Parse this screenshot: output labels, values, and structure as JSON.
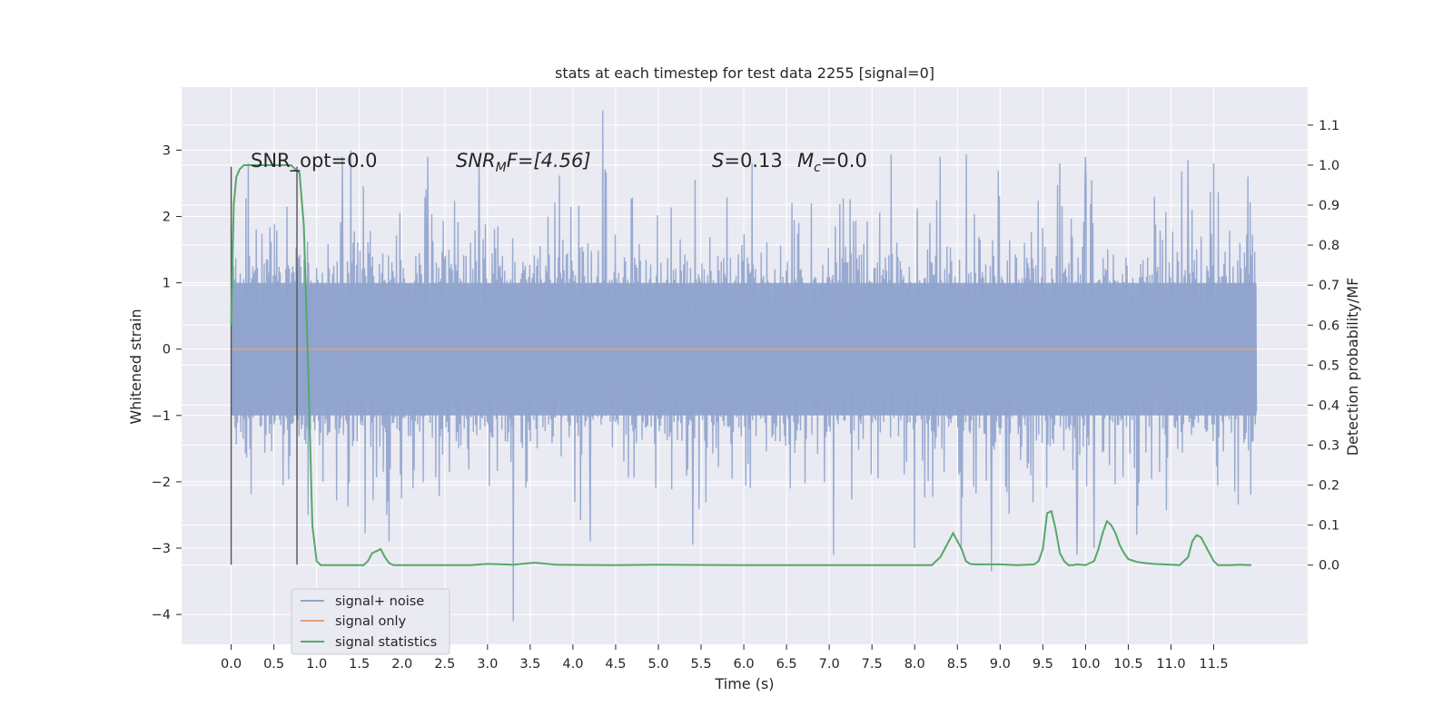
{
  "chart_data": {
    "type": "line",
    "title": "stats at each timestep for test data 2255 [signal=0]",
    "xlabel": "Time (s)",
    "ylabel": "Whitened strain",
    "y2label": "Detection probability/MF",
    "xlim": [
      -0.58,
      12.6
    ],
    "ylim": [
      -4.45,
      3.95
    ],
    "y2lim": [
      -0.198,
      1.195
    ],
    "xticks": [
      "0.0",
      "0.5",
      "1.0",
      "1.5",
      "2.0",
      "2.5",
      "3.0",
      "3.5",
      "4.0",
      "4.5",
      "5.0",
      "5.5",
      "6.0",
      "6.5",
      "7.0",
      "7.5",
      "8.0",
      "8.5",
      "9.0",
      "9.5",
      "10.0",
      "10.5",
      "11.0",
      "11.5"
    ],
    "yticks": [
      "−4",
      "−3",
      "−2",
      "−1",
      "0",
      "1",
      "2",
      "3"
    ],
    "y2ticks": [
      "0.0",
      "0.1",
      "0.2",
      "0.3",
      "0.4",
      "0.5",
      "0.6",
      "0.7",
      "0.8",
      "0.9",
      "1.0",
      "1.1"
    ],
    "annotations": {
      "snr_opt": "SNR_opt=0.0",
      "snr_mf_base": "SNR",
      "snr_mf_sub": "M",
      "snr_mf_rest": "F=[4.56]",
      "s_sym": "S",
      "s_val": "=0.13",
      "mc_base": "M",
      "mc_sub": "c",
      "mc_val": "=0.0"
    },
    "vlines": [
      0.0,
      0.77
    ],
    "vline_range": [
      -3.25,
      2.75
    ],
    "legend": {
      "placement": "lower-left",
      "entries": [
        "signal+ noise",
        "signal only",
        "signal statistics"
      ]
    },
    "colors": {
      "noise": "#8fa3cc",
      "signal_only": "#e1a07f",
      "statistics": "#55a868",
      "vline": "#555555",
      "plot_bg": "#eaeaf2",
      "grid": "#ffffff"
    },
    "series": [
      {
        "name": "signal+ noise",
        "axis": "left",
        "x_range": [
          0.0,
          12.0
        ],
        "band_bulk": [
          -1.0,
          1.0
        ],
        "envelope_typical": [
          -1.6,
          1.6
        ],
        "spikes": [
          [
            0.2,
            2.8
          ],
          [
            1.3,
            2.9
          ],
          [
            1.4,
            3.0
          ],
          [
            2.3,
            2.9
          ],
          [
            2.9,
            2.9
          ],
          [
            4.35,
            3.6
          ],
          [
            3.3,
            -4.1
          ],
          [
            6.1,
            2.8
          ],
          [
            8.3,
            2.9
          ],
          [
            9.7,
            2.8
          ],
          [
            10.0,
            2.9
          ],
          [
            11.2,
            2.85
          ],
          [
            11.5,
            2.8
          ],
          [
            11.9,
            2.6
          ],
          [
            7.05,
            -3.1
          ],
          [
            8.0,
            -3.0
          ],
          [
            8.9,
            -3.35
          ],
          [
            9.9,
            -3.1
          ],
          [
            10.1,
            -3.0
          ],
          [
            4.2,
            -2.9
          ],
          [
            5.4,
            -2.95
          ],
          [
            10.6,
            -2.8
          ],
          [
            1.85,
            -2.9
          ],
          [
            0.9,
            -2.5
          ]
        ]
      },
      {
        "name": "signal only",
        "axis": "left",
        "x": [
          0.0,
          12.0
        ],
        "y": [
          0.0,
          0.0
        ]
      },
      {
        "name": "signal statistics",
        "axis": "right",
        "x": [
          0.0,
          0.03,
          0.06,
          0.1,
          0.15,
          0.2,
          0.3,
          0.5,
          0.7,
          0.75,
          0.8,
          0.85,
          0.9,
          0.95,
          1.0,
          1.05,
          1.1,
          1.3,
          1.5,
          1.55,
          1.6,
          1.65,
          1.7,
          1.75,
          1.8,
          1.85,
          1.9,
          2.0,
          2.5,
          2.8,
          3.0,
          3.3,
          3.5,
          3.55,
          3.6,
          3.8,
          4.5,
          5.0,
          6.0,
          7.0,
          8.0,
          8.2,
          8.3,
          8.4,
          8.45,
          8.5,
          8.55,
          8.6,
          8.65,
          8.7,
          8.8,
          9.0,
          9.2,
          9.4,
          9.45,
          9.5,
          9.55,
          9.6,
          9.65,
          9.7,
          9.75,
          9.8,
          9.85,
          9.9,
          10.0,
          10.1,
          10.15,
          10.2,
          10.25,
          10.3,
          10.35,
          10.4,
          10.45,
          10.5,
          10.6,
          10.7,
          10.8,
          11.0,
          11.1,
          11.2,
          11.25,
          11.3,
          11.35,
          11.4,
          11.45,
          11.5,
          11.55,
          11.6,
          11.7,
          11.8,
          11.94
        ],
        "y": [
          0.6,
          0.9,
          0.97,
          0.99,
          1.0,
          1.0,
          1.0,
          1.0,
          1.0,
          0.99,
          0.98,
          0.85,
          0.5,
          0.1,
          0.01,
          0.0,
          0.0,
          0.0,
          0.0,
          0.0,
          0.01,
          0.03,
          0.035,
          0.04,
          0.02,
          0.005,
          0.0,
          0.0,
          0.0,
          0.0,
          0.003,
          0.001,
          0.005,
          0.006,
          0.005,
          0.001,
          0.0,
          0.001,
          0.0,
          0.0,
          0.0,
          0.0,
          0.02,
          0.06,
          0.08,
          0.06,
          0.04,
          0.01,
          0.003,
          0.002,
          0.002,
          0.002,
          0.0,
          0.002,
          0.01,
          0.04,
          0.13,
          0.135,
          0.09,
          0.03,
          0.01,
          0.0,
          0.0,
          0.002,
          0.0,
          0.01,
          0.04,
          0.08,
          0.11,
          0.1,
          0.08,
          0.05,
          0.03,
          0.015,
          0.008,
          0.005,
          0.003,
          0.001,
          0.0,
          0.02,
          0.06,
          0.075,
          0.07,
          0.05,
          0.03,
          0.01,
          0.0,
          0.0,
          0.0,
          0.001,
          0.0
        ]
      }
    ]
  }
}
